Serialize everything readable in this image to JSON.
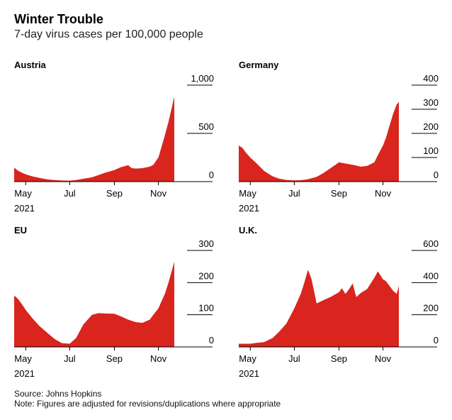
{
  "title": "Winter Trouble",
  "subtitle": "7-day virus cases per 100,000 people",
  "source": "Source: Johns Hopkins",
  "note": "Note: Figures are adjusted for revisions/duplications where appropriate",
  "colors": {
    "area": "#d9251d",
    "axis": "#000000",
    "gridline": "#000000"
  },
  "chart_data": [
    {
      "type": "area",
      "title": "Austria",
      "x_range": [
        "2021-04-15",
        "2021-11-25"
      ],
      "ylim": [
        0,
        1000
      ],
      "y_ticks": [
        0,
        500,
        1000
      ],
      "y_tick_labels": [
        "0",
        "500",
        "1,000"
      ],
      "x_ticks": [
        "2021-05-01",
        "2021-07-01",
        "2021-09-01",
        "2021-11-01"
      ],
      "x_tick_labels": [
        "May",
        "Jul",
        "Sep",
        "Nov"
      ],
      "x_year_label": "2021",
      "series": [
        {
          "x": [
            "2021-04-15",
            "2021-04-20",
            "2021-04-25",
            "2021-05-01",
            "2021-05-10",
            "2021-05-20",
            "2021-06-01",
            "2021-06-10",
            "2021-06-20",
            "2021-07-01",
            "2021-07-10",
            "2021-07-20",
            "2021-08-01",
            "2021-08-10",
            "2021-08-20",
            "2021-09-01",
            "2021-09-10",
            "2021-09-20",
            "2021-09-25",
            "2021-10-01",
            "2021-10-10",
            "2021-10-20",
            "2021-10-25",
            "2021-11-01",
            "2021-11-05",
            "2021-11-10",
            "2021-11-15",
            "2021-11-20",
            "2021-11-23"
          ],
          "y": [
            145,
            115,
            95,
            75,
            55,
            38,
            22,
            16,
            12,
            10,
            16,
            30,
            45,
            68,
            95,
            120,
            150,
            170,
            140,
            135,
            140,
            155,
            175,
            250,
            350,
            480,
            620,
            780,
            880
          ]
        }
      ]
    },
    {
      "type": "area",
      "title": "Germany",
      "x_range": [
        "2021-04-15",
        "2021-11-25"
      ],
      "ylim": [
        0,
        400
      ],
      "y_ticks": [
        0,
        100,
        200,
        300,
        400
      ],
      "y_tick_labels": [
        "0",
        "100",
        "200",
        "300",
        "400"
      ],
      "x_ticks": [
        "2021-05-01",
        "2021-07-01",
        "2021-09-01",
        "2021-11-01"
      ],
      "x_tick_labels": [
        "May",
        "Jul",
        "Sep",
        "Nov"
      ],
      "x_year_label": "2021",
      "series": [
        {
          "x": [
            "2021-04-15",
            "2021-04-20",
            "2021-04-25",
            "2021-05-01",
            "2021-05-10",
            "2021-05-20",
            "2021-06-01",
            "2021-06-10",
            "2021-06-20",
            "2021-07-01",
            "2021-07-10",
            "2021-07-20",
            "2021-08-01",
            "2021-08-10",
            "2021-08-20",
            "2021-09-01",
            "2021-09-10",
            "2021-09-20",
            "2021-10-01",
            "2021-10-10",
            "2021-10-20",
            "2021-10-25",
            "2021-11-01",
            "2021-11-05",
            "2021-11-10",
            "2021-11-15",
            "2021-11-20",
            "2021-11-23"
          ],
          "y": [
            150,
            140,
            120,
            100,
            75,
            45,
            22,
            12,
            7,
            5,
            6,
            10,
            20,
            35,
            55,
            80,
            75,
            70,
            62,
            65,
            80,
            110,
            150,
            180,
            230,
            280,
            320,
            330
          ]
        }
      ]
    },
    {
      "type": "area",
      "title": "EU",
      "x_range": [
        "2021-04-15",
        "2021-11-25"
      ],
      "ylim": [
        0,
        300
      ],
      "y_ticks": [
        0,
        100,
        200,
        300
      ],
      "y_tick_labels": [
        "0",
        "100",
        "200",
        "300"
      ],
      "x_ticks": [
        "2021-05-01",
        "2021-07-01",
        "2021-09-01",
        "2021-11-01"
      ],
      "x_tick_labels": [
        "May",
        "Jul",
        "Sep",
        "Nov"
      ],
      "x_year_label": "2021",
      "series": [
        {
          "x": [
            "2021-04-15",
            "2021-04-20",
            "2021-04-25",
            "2021-05-01",
            "2021-05-10",
            "2021-05-20",
            "2021-06-01",
            "2021-06-10",
            "2021-06-20",
            "2021-07-01",
            "2021-07-10",
            "2021-07-20",
            "2021-08-01",
            "2021-08-10",
            "2021-08-20",
            "2021-09-01",
            "2021-09-10",
            "2021-09-20",
            "2021-10-01",
            "2021-10-10",
            "2021-10-20",
            "2021-10-25",
            "2021-11-01",
            "2021-11-05",
            "2021-11-10",
            "2021-11-15",
            "2021-11-20",
            "2021-11-23"
          ],
          "y": [
            160,
            150,
            135,
            115,
            90,
            65,
            42,
            25,
            12,
            10,
            28,
            70,
            100,
            105,
            104,
            103,
            95,
            85,
            77,
            75,
            85,
            100,
            120,
            140,
            165,
            200,
            240,
            265
          ]
        }
      ]
    },
    {
      "type": "area",
      "title": "U.K.",
      "x_range": [
        "2021-04-15",
        "2021-11-25"
      ],
      "ylim": [
        0,
        600
      ],
      "y_ticks": [
        0,
        200,
        400,
        600
      ],
      "y_tick_labels": [
        "0",
        "200",
        "400",
        "600"
      ],
      "x_ticks": [
        "2021-05-01",
        "2021-07-01",
        "2021-09-01",
        "2021-11-01"
      ],
      "x_tick_labels": [
        "May",
        "Jul",
        "Sep",
        "Nov"
      ],
      "x_year_label": "2021",
      "series": [
        {
          "x": [
            "2021-04-15",
            "2021-04-25",
            "2021-05-01",
            "2021-05-10",
            "2021-05-20",
            "2021-06-01",
            "2021-06-10",
            "2021-06-20",
            "2021-07-01",
            "2021-07-10",
            "2021-07-15",
            "2021-07-20",
            "2021-07-25",
            "2021-08-01",
            "2021-08-10",
            "2021-08-20",
            "2021-09-01",
            "2021-09-05",
            "2021-09-10",
            "2021-09-15",
            "2021-09-20",
            "2021-09-25",
            "2021-10-01",
            "2021-10-10",
            "2021-10-20",
            "2021-10-25",
            "2021-11-01",
            "2021-11-05",
            "2021-11-10",
            "2021-11-15",
            "2021-11-20",
            "2021-11-23"
          ],
          "y": [
            20,
            20,
            20,
            25,
            30,
            55,
            95,
            145,
            240,
            330,
            400,
            480,
            420,
            270,
            290,
            310,
            340,
            365,
            330,
            360,
            395,
            310,
            335,
            360,
            430,
            470,
            420,
            410,
            380,
            350,
            330,
            380
          ]
        }
      ]
    }
  ]
}
